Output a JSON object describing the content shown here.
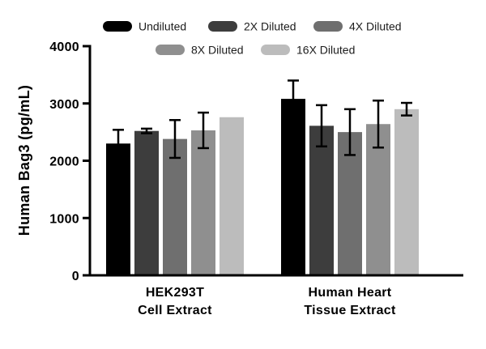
{
  "chart_data": {
    "type": "bar",
    "title": "",
    "ylabel": "Human Bag3 (pg/mL)",
    "xlabel": "",
    "ylim": [
      0,
      4000
    ],
    "yticks": [
      0,
      1000,
      2000,
      3000,
      4000
    ],
    "categories": [
      "HEK293T Cell Extract",
      "Human Heart Tissue Extract"
    ],
    "category_lines": [
      [
        "HEK293T",
        "Cell Extract"
      ],
      [
        "Human Heart",
        "Tissue Extract"
      ]
    ],
    "legend_position": "top",
    "grid": false,
    "axis_color": "#000000",
    "error_bar_color": "#000000",
    "series": [
      {
        "name": "Undiluted",
        "color": "#000000",
        "values": [
          2300,
          3080
        ],
        "errors": [
          240,
          320
        ]
      },
      {
        "name": "2X Diluted",
        "color": "#3d3d3d",
        "values": [
          2520,
          2610
        ],
        "errors": [
          40,
          360
        ]
      },
      {
        "name": "4X Diluted",
        "color": "#6f6f6f",
        "values": [
          2380,
          2500
        ],
        "errors": [
          330,
          400
        ]
      },
      {
        "name": "8X Diluted",
        "color": "#8f8f8f",
        "values": [
          2530,
          2640
        ],
        "errors": [
          310,
          410
        ]
      },
      {
        "name": "16X Diluted",
        "color": "#bcbcbc",
        "values": [
          2760,
          2900
        ],
        "errors": [
          0,
          110
        ]
      }
    ]
  }
}
